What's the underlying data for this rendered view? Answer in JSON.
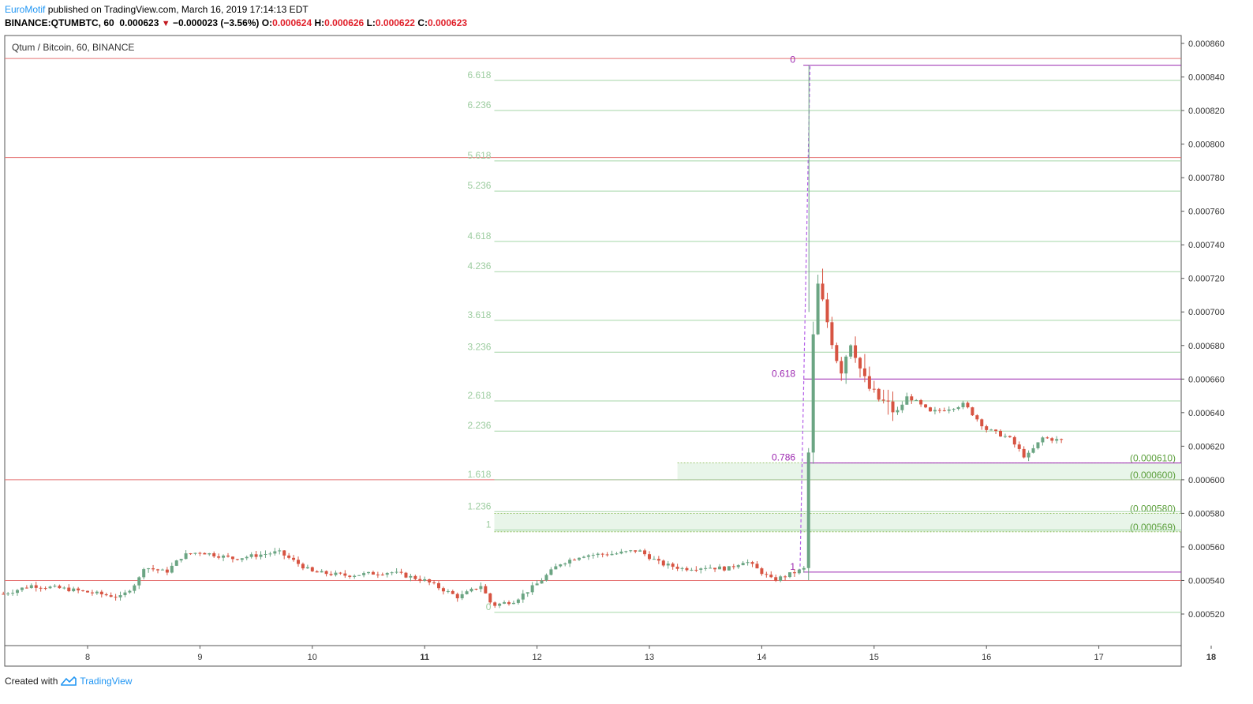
{
  "header": {
    "user": "EuroMotif",
    "published_text": "published on TradingView.com, March 16, 2019 17:14:13 EDT",
    "symbol": "BINANCE:QTUMBTC, 60",
    "last": "0.000623",
    "change": "−0.000023 (−3.56%)",
    "o_label": "O:",
    "o": "0.000624",
    "h_label": "H:",
    "h": "0.000626",
    "l_label": "L:",
    "l": "0.000622",
    "c_label": "C:",
    "c": "0.000623"
  },
  "footer": {
    "created_with": "Created with",
    "brand": "TradingView"
  },
  "colors": {
    "up": "#6ba583",
    "down": "#d75442",
    "fib_green": "#a5d6a7",
    "fib_purple": "#9c27b0",
    "hline_red": "#e57373",
    "box_fill": "#e8f5e9",
    "brand": "#2196f3"
  },
  "chart_data": {
    "type": "candlestick",
    "title": "Qtum / Bitcoin, 60, BINANCE",
    "x_labels": [
      "8",
      "9",
      "10",
      "11",
      "12",
      "13",
      "14",
      "15",
      "16",
      "17",
      "18"
    ],
    "ylim": [
      0.00051,
      0.000862
    ],
    "y_ticks": [
      "0.000520",
      "0.000540",
      "0.000560",
      "0.000580",
      "0.000600",
      "0.000620",
      "0.000640",
      "0.000660",
      "0.000680",
      "0.000700",
      "0.000720",
      "0.000740",
      "0.000760",
      "0.000780",
      "0.000800",
      "0.000820",
      "0.000840",
      "0.000860"
    ],
    "horizontal_lines": [
      0.000851,
      0.000792,
      0.0006,
      0.00054
    ],
    "fib_extension": {
      "levels": [
        {
          "label": "0",
          "value": 0.000521
        },
        {
          "label": "1",
          "value": 0.00057
        },
        {
          "label": "1.236",
          "value": 0.000581
        },
        {
          "label": "1.618",
          "value": 0.0006
        },
        {
          "label": "2.236",
          "value": 0.000629
        },
        {
          "label": "2.618",
          "value": 0.000647
        },
        {
          "label": "3.236",
          "value": 0.000676
        },
        {
          "label": "3.618",
          "value": 0.000695
        },
        {
          "label": "4.236",
          "value": 0.000724
        },
        {
          "label": "4.618",
          "value": 0.000742
        },
        {
          "label": "5.236",
          "value": 0.000772
        },
        {
          "label": "5.618",
          "value": 0.00079
        },
        {
          "label": "6.236",
          "value": 0.00082
        },
        {
          "label": "6.618",
          "value": 0.000838
        }
      ]
    },
    "fib_retracement": {
      "levels": [
        {
          "label": "0",
          "value": 0.000847
        },
        {
          "label": "0.618",
          "value": 0.00066
        },
        {
          "label": "0.786",
          "value": 0.00061
        },
        {
          "label": "1",
          "value": 0.000545
        }
      ]
    },
    "zones": [
      {
        "top_label": "(0.000610)",
        "bottom_label": "(0.000600)",
        "top": 0.00061,
        "bottom": 0.0006
      },
      {
        "top_label": "(0.000580)",
        "bottom_label": "(0.000569)",
        "top": 0.00058,
        "bottom": 0.000569
      }
    ],
    "candles_x_range": [
      7.25,
      16.7
    ],
    "anchors": [
      [
        7.25,
        0.000532
      ],
      [
        7.5,
        0.000537
      ],
      [
        7.8,
        0.000535
      ],
      [
        8.0,
        0.000533
      ],
      [
        8.3,
        0.00053
      ],
      [
        8.45,
        0.00054
      ],
      [
        8.5,
        0.000548
      ],
      [
        8.7,
        0.000545
      ],
      [
        8.85,
        0.000555
      ],
      [
        9.0,
        0.000557
      ],
      [
        9.3,
        0.000553
      ],
      [
        9.7,
        0.000557
      ],
      [
        10.0,
        0.000545
      ],
      [
        10.3,
        0.000543
      ],
      [
        10.7,
        0.000545
      ],
      [
        11.0,
        0.00054
      ],
      [
        11.3,
        0.00053
      ],
      [
        11.5,
        0.000537
      ],
      [
        11.6,
        0.000525
      ],
      [
        11.8,
        0.000528
      ],
      [
        12.0,
        0.000538
      ],
      [
        12.2,
        0.00055
      ],
      [
        12.4,
        0.000555
      ],
      [
        12.7,
        0.000556
      ],
      [
        12.9,
        0.000558
      ],
      [
        13.1,
        0.00055
      ],
      [
        13.3,
        0.000547
      ],
      [
        13.5,
        0.000548
      ],
      [
        13.7,
        0.000547
      ],
      [
        13.85,
        0.000552
      ],
      [
        14.1,
        0.00054
      ],
      [
        14.3,
        0.000545
      ],
      [
        14.38,
        0.000547
      ],
      [
        14.45,
        0.000678
      ],
      [
        14.5,
        0.000715
      ],
      [
        14.6,
        0.00069
      ],
      [
        14.7,
        0.000665
      ],
      [
        14.8,
        0.000685
      ],
      [
        14.9,
        0.00066
      ],
      [
        15.0,
        0.00065
      ],
      [
        15.2,
        0.00064
      ],
      [
        15.3,
        0.00065
      ],
      [
        15.5,
        0.00064
      ],
      [
        15.8,
        0.000645
      ],
      [
        16.0,
        0.00063
      ],
      [
        16.2,
        0.000625
      ],
      [
        16.35,
        0.000613
      ],
      [
        16.5,
        0.000625
      ],
      [
        16.7,
        0.000623
      ]
    ]
  }
}
